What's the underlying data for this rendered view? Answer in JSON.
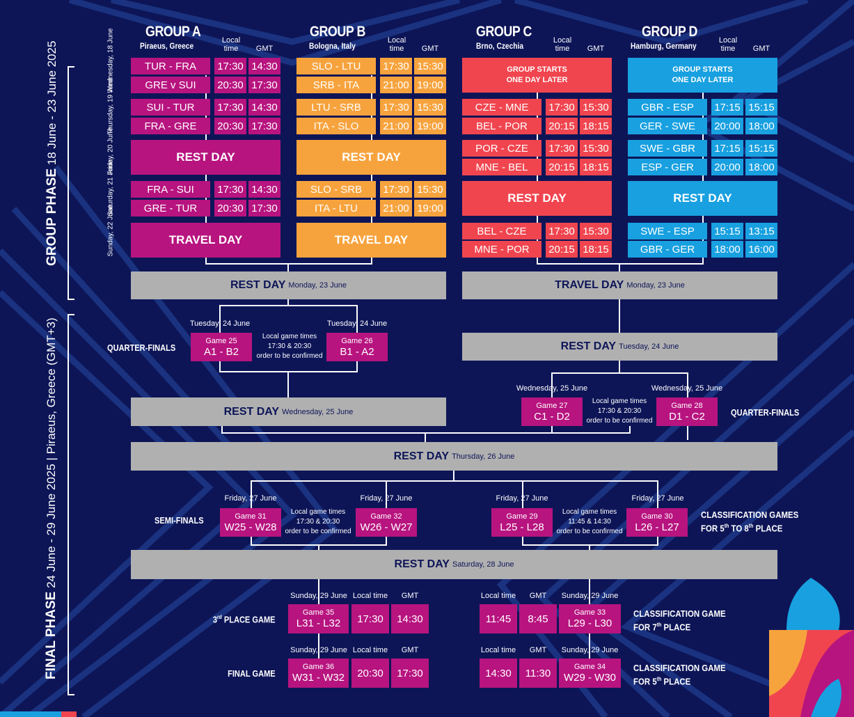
{
  "colors": {
    "background": "#0d1557",
    "group_a": "#b7147f",
    "group_b": "#f7a33d",
    "group_c": "#f0454f",
    "group_d": "#18a0e0",
    "neutral": "#b0b0b0"
  },
  "groups": {
    "a": {
      "title": "GROUP A",
      "city": "Piraeus, Greece",
      "local": "Local\ntime",
      "gmt": "GMT"
    },
    "b": {
      "title": "GROUP B",
      "city": "Bologna, Italy",
      "local": "Local\ntime",
      "gmt": "GMT"
    },
    "c": {
      "title": "GROUP C",
      "city": "Brno, Czechia",
      "local": "Local\ntime",
      "gmt": "GMT"
    },
    "d": {
      "title": "GROUP D",
      "city": "Hamburg, Germany",
      "local": "Local\ntime",
      "gmt": "GMT"
    }
  },
  "days": [
    "Wednesday,\n18 June",
    "Thursday,\n19 June",
    "Friday,\n20 June",
    "Saturday,\n21 June",
    "Sunday,\n22 June"
  ],
  "group_a_games": [
    [
      "TUR - FRA",
      "17:30",
      "14:30"
    ],
    [
      "GRE v SUI",
      "20:30",
      "17:30"
    ],
    [
      "SUI - TUR",
      "17:30",
      "14:30"
    ],
    [
      "FRA - GRE",
      "20:30",
      "17:30"
    ],
    [
      "FRA - SUI",
      "17:30",
      "14:30"
    ],
    [
      "GRE - TUR",
      "20:30",
      "17:30"
    ]
  ],
  "group_b_games": [
    [
      "SLO - LTU",
      "17:30",
      "15:30"
    ],
    [
      "SRB - ITA",
      "21:00",
      "19:00"
    ],
    [
      "LTU - SRB",
      "17:30",
      "15:30"
    ],
    [
      "ITA - SLO",
      "21:00",
      "19:00"
    ],
    [
      "SLO - SRB",
      "17:30",
      "15:30"
    ],
    [
      "ITA - LTU",
      "21:00",
      "19:00"
    ]
  ],
  "group_c_games": [
    [
      "CZE - MNE",
      "17:30",
      "15:30"
    ],
    [
      "BEL - POR",
      "20:15",
      "18:15"
    ],
    [
      "POR - CZE",
      "17:30",
      "15:30"
    ],
    [
      "MNE - BEL",
      "20:15",
      "18:15"
    ],
    [
      "BEL - CZE",
      "17:30",
      "15:30"
    ],
    [
      "MNE - POR",
      "20:15",
      "18:15"
    ]
  ],
  "group_d_games": [
    [
      "GBR - ESP",
      "17:15",
      "15:15"
    ],
    [
      "GER - SWE",
      "20:00",
      "18:00"
    ],
    [
      "SWE - GBR",
      "17:15",
      "15:15"
    ],
    [
      "ESP - GER",
      "20:00",
      "18:00"
    ],
    [
      "SWE - ESP",
      "15:15",
      "13:15"
    ],
    [
      "GBR - GER",
      "18:00",
      "16:00"
    ]
  ],
  "labels": {
    "rest_day": "REST DAY",
    "travel_day": "TRAVEL DAY",
    "group_starts_1": "GROUP STARTS",
    "group_starts_2": "ONE DAY LATER"
  },
  "side": {
    "group_phase_bold": "GROUP PHASE",
    "group_phase_rest": " 18 June - 23 June 2025",
    "final_phase_bold": "FINAL PHASE",
    "final_phase_rest": " 24 June - 29 June 2025 | Piraeus, Greece (GMT+3)"
  },
  "bars": {
    "rest_mon": {
      "title": "REST DAY",
      "date": "Monday, 23 June"
    },
    "travel_mon": {
      "title": "TRAVEL DAY",
      "date": "Monday, 23 June"
    },
    "rest_tue": {
      "title": "REST DAY",
      "date": "Tuesday, 24 June"
    },
    "rest_wed": {
      "title": "REST DAY",
      "date": "Wednesday, 25 June"
    },
    "rest_thu": {
      "title": "REST DAY",
      "date": "Thursday, 26 June"
    },
    "rest_sat": {
      "title": "REST DAY",
      "date": "Saturday, 28 June"
    }
  },
  "qf_left": {
    "label": "QUARTER-FINALS",
    "date1": "Tuesday, 24 June",
    "date2": "Tuesday, 24 June",
    "g1": {
      "no": "Game 25",
      "teams": "A1 - B2"
    },
    "g2": {
      "no": "Game 26",
      "teams": "B1 - A2"
    },
    "note": "Local game times\n17:30 & 20:30\norder to be confirmed"
  },
  "qf_right": {
    "label": "QUARTER-FINALS",
    "date1": "Wednesday, 25 June",
    "date2": "Wednesday, 25 June",
    "g1": {
      "no": "Game 27",
      "teams": "C1 - D2"
    },
    "g2": {
      "no": "Game 28",
      "teams": "D1 - C2"
    },
    "note": "Local game times\n17:30 & 20:30\norder to be confirmed"
  },
  "semis": {
    "label": "SEMI-FINALS",
    "date1": "Friday, 27 June",
    "date2": "Friday, 27 June",
    "g1": {
      "no": "Game 31",
      "teams": "W25 - W28"
    },
    "g2": {
      "no": "Game 32",
      "teams": "W26 - W27"
    },
    "note": "Local game times\n17:30 & 20:30\norder to be confirmed"
  },
  "class": {
    "label1": "CLASSIFICATION GAMES",
    "label2": "FOR 5",
    "label2_sup": "th",
    "label2_b": " TO 8",
    "label2_sup2": "th",
    "label2_c": " PLACE",
    "date1": "Friday, 27 June",
    "date2": "Friday, 27 June",
    "g1": {
      "no": "Game 29",
      "teams": "L25 - L28"
    },
    "g2": {
      "no": "Game 30",
      "teams": "L26 - L27"
    },
    "note": "Local game times\n11:45 & 14:30\norder to be confirmed"
  },
  "third": {
    "label": "3",
    "label_sup": "rd",
    "label_rest": " PLACE GAME",
    "date": "Sunday, 29 June",
    "local_h": "Local time",
    "gmt_h": "GMT",
    "no": "Game 35",
    "teams": "L31 - L32",
    "local": "17:30",
    "gmt": "14:30"
  },
  "final": {
    "label": "FINAL GAME",
    "date": "Sunday, 29 June",
    "local_h": "Local time",
    "gmt_h": "GMT",
    "no": "Game 36",
    "teams": "W31 - W32",
    "local": "20:30",
    "gmt": "17:30"
  },
  "seventh": {
    "label1": "CLASSIFICATION GAME",
    "label2": "FOR 7",
    "label2_sup": "th",
    "label2_b": " PLACE",
    "date": "Sunday, 29 June",
    "local_h": "Local time",
    "gmt_h": "GMT",
    "no": "Game 33",
    "teams": "L29 - L30",
    "local": "11:45",
    "gmt": "8:45"
  },
  "fifth": {
    "label1": "CLASSIFICATION GAME",
    "label2": "FOR 5",
    "label2_sup": "th",
    "label2_b": " PLACE",
    "date": "Sunday, 29 June",
    "local_h": "Local time",
    "gmt_h": "GMT",
    "no": "Game 34",
    "teams": "W29 - W30",
    "local": "14:30",
    "gmt": "11:30"
  }
}
